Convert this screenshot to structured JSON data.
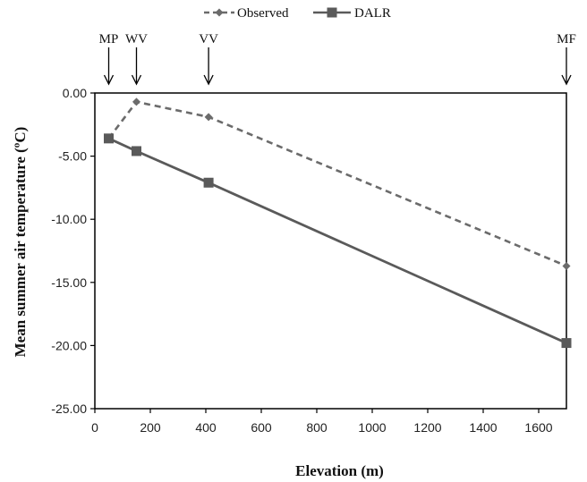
{
  "chart_data": {
    "type": "line",
    "title": "",
    "xlabel": "Elevation (m)",
    "ylabel": "Mean summer air temperature (ºC)",
    "xlim": [
      0,
      1700
    ],
    "ylim": [
      -25,
      0
    ],
    "xticks": [
      0,
      200,
      400,
      600,
      800,
      1000,
      1200,
      1400,
      1600
    ],
    "xtick_labels": [
      "0",
      "200",
      "400",
      "600",
      "800",
      "1000",
      "1200",
      "1400",
      "1600"
    ],
    "yticks": [
      0,
      -5,
      -10,
      -15,
      -20,
      -25
    ],
    "ytick_labels": [
      "0.00",
      "-5.00",
      "-10.00",
      "-15.00",
      "-20.00",
      "-25.00"
    ],
    "grid": false,
    "legend_position": "top-center",
    "series": [
      {
        "name": "Observed",
        "style": "dashed",
        "marker": "diamond",
        "color": "#6b6b6b",
        "x": [
          50,
          150,
          410,
          1700
        ],
        "y": [
          -3.6,
          -0.7,
          -1.9,
          -13.7
        ]
      },
      {
        "name": "DALR",
        "style": "solid",
        "marker": "square",
        "color": "#5a5a5a",
        "x": [
          50,
          150,
          410,
          1700
        ],
        "y": [
          -3.6,
          -4.6,
          -7.1,
          -19.8
        ]
      }
    ],
    "annotations": [
      {
        "label": "MP",
        "x": 50
      },
      {
        "label": "WV",
        "x": 150
      },
      {
        "label": "VV",
        "x": 410
      },
      {
        "label": "MF",
        "x": 1700
      }
    ]
  }
}
